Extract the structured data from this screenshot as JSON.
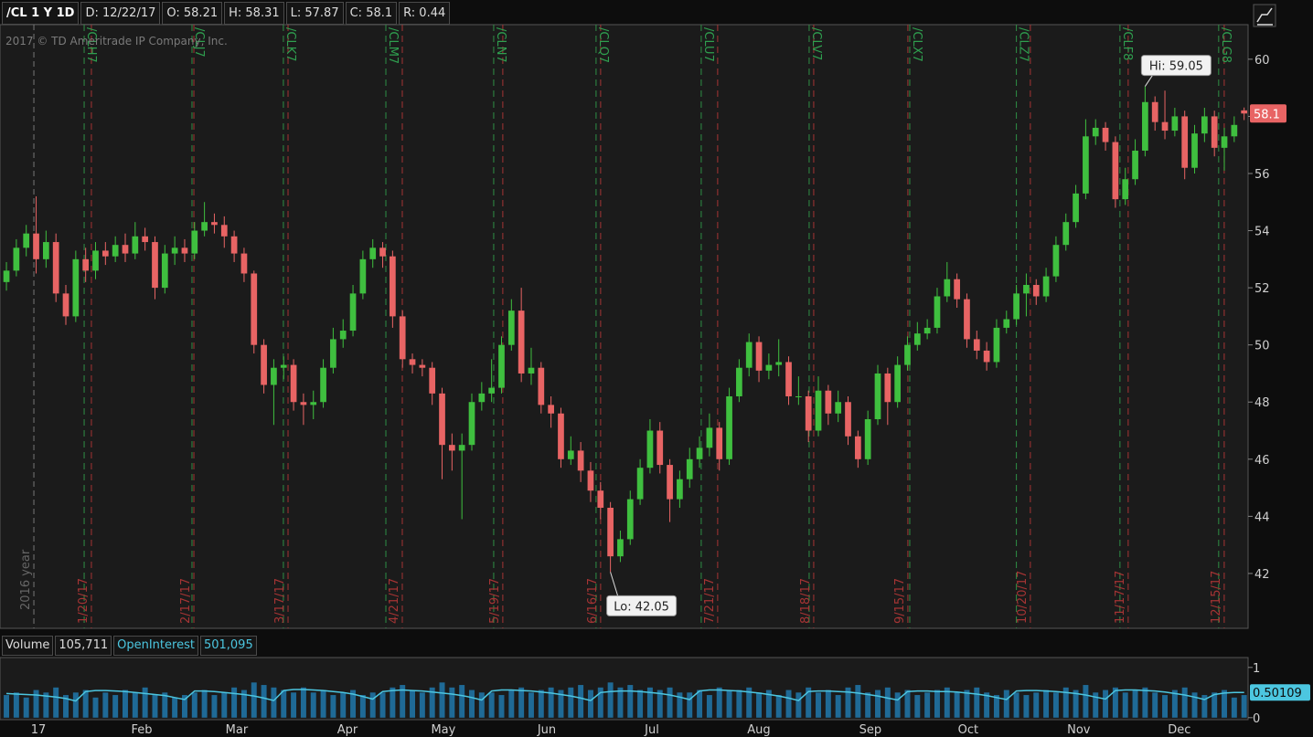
{
  "chart_data": [
    {
      "type": "candlestick",
      "title": "/CL 1 Y 1D",
      "header": [
        "D: 12/22/17",
        "O: 58.21",
        "H: 58.31",
        "L: 57.87",
        "C: 58.1",
        "R: 0.44"
      ],
      "copyright": "2017 © TD Ameritrade IP Company, Inc.",
      "up_color": "#3fbf3f",
      "down_color": "#e86464",
      "open": [
        52.2,
        52.6,
        53.4,
        53.9,
        53.0,
        53.6,
        51.8,
        51.0,
        53.0,
        52.6,
        53.3,
        53.1,
        53.5,
        53.2,
        53.8,
        53.6,
        52.0,
        53.2,
        53.4,
        53.2,
        54.0,
        54.3,
        54.2,
        53.8,
        53.2,
        52.5,
        50.0,
        48.6,
        49.2,
        49.3,
        48.0,
        47.9,
        48.0,
        49.2,
        50.2,
        50.5,
        51.8,
        53.0,
        53.4,
        53.1,
        51.0,
        49.5,
        49.3,
        49.2,
        48.3,
        46.5,
        46.3,
        46.5,
        48.0,
        48.3,
        48.5,
        50.0,
        51.2,
        49.0,
        49.2,
        47.9,
        47.6,
        46.0,
        46.3,
        45.6,
        44.9,
        44.3,
        42.6,
        43.2,
        44.6,
        45.7,
        47.0,
        45.8,
        44.6,
        45.3,
        46.0,
        46.4,
        47.1,
        46.0,
        48.2,
        49.2,
        50.1,
        49.1,
        49.3,
        49.4,
        48.2,
        48.2,
        47.0,
        48.4,
        47.6,
        48.0,
        46.8,
        46.0,
        47.4,
        49.0,
        48.0,
        49.3,
        50.0,
        50.4,
        50.6,
        51.7,
        52.3,
        51.6,
        50.2,
        49.8,
        49.4,
        50.6,
        50.9,
        51.8,
        52.1,
        51.7,
        52.4,
        53.5,
        54.3,
        55.3,
        57.3,
        57.6,
        57.1,
        55.1,
        55.8,
        56.8,
        58.5,
        57.8,
        57.5,
        58.0,
        56.2,
        57.4,
        58.0,
        56.9,
        57.3,
        58.21
      ],
      "high": [
        52.9,
        53.7,
        54.2,
        55.2,
        54.0,
        53.9,
        52.1,
        53.3,
        53.4,
        53.6,
        53.6,
        53.8,
        53.9,
        54.3,
        54.1,
        53.8,
        53.5,
        53.8,
        53.7,
        54.3,
        55.0,
        54.6,
        54.5,
        54.0,
        53.4,
        52.6,
        50.2,
        49.5,
        49.6,
        49.5,
        48.3,
        48.4,
        49.5,
        50.6,
        50.9,
        52.1,
        53.3,
        53.7,
        53.6,
        53.3,
        51.2,
        49.7,
        49.5,
        49.4,
        48.5,
        46.9,
        46.9,
        48.3,
        48.7,
        49.5,
        50.3,
        51.6,
        52.0,
        49.9,
        49.4,
        48.2,
        47.8,
        46.8,
        46.6,
        45.9,
        45.2,
        44.5,
        43.5,
        44.9,
        46.0,
        47.4,
        47.3,
        46.0,
        45.6,
        46.4,
        46.8,
        47.6,
        47.3,
        48.5,
        49.5,
        50.4,
        50.3,
        49.7,
        50.2,
        49.6,
        48.9,
        48.4,
        48.9,
        48.6,
        48.4,
        48.2,
        47.0,
        47.7,
        49.3,
        49.2,
        49.6,
        50.3,
        50.8,
        50.9,
        52.0,
        52.9,
        52.5,
        51.8,
        50.5,
        50.1,
        50.9,
        51.2,
        52.1,
        52.5,
        52.3,
        52.7,
        53.8,
        54.6,
        55.6,
        57.9,
        57.9,
        57.8,
        57.3,
        56.2,
        57.2,
        59.05,
        58.7,
        58.9,
        58.3,
        58.2,
        57.7,
        58.3,
        58.2,
        57.6,
        58.0,
        58.31
      ],
      "low": [
        51.9,
        52.4,
        53.1,
        52.5,
        52.7,
        51.5,
        50.7,
        50.8,
        52.2,
        52.3,
        52.8,
        52.9,
        52.9,
        53.0,
        53.3,
        51.6,
        51.8,
        52.8,
        52.9,
        53.0,
        53.8,
        53.9,
        53.4,
        52.9,
        52.2,
        49.7,
        48.3,
        47.2,
        48.8,
        47.7,
        47.2,
        47.4,
        47.8,
        49.0,
        49.9,
        50.3,
        51.6,
        52.7,
        52.7,
        50.6,
        49.2,
        49.0,
        48.9,
        47.9,
        45.3,
        45.6,
        43.9,
        46.3,
        47.7,
        48.0,
        48.3,
        49.8,
        48.7,
        48.6,
        47.6,
        47.1,
        45.7,
        45.8,
        45.2,
        44.5,
        43.9,
        42.05,
        42.4,
        43.0,
        44.4,
        45.5,
        45.5,
        43.8,
        44.3,
        45.0,
        45.7,
        46.1,
        45.6,
        45.8,
        48.0,
        48.9,
        48.7,
        48.8,
        48.9,
        47.9,
        47.9,
        46.6,
        46.8,
        47.2,
        47.3,
        46.5,
        45.7,
        45.8,
        47.2,
        47.2,
        47.8,
        49.1,
        49.8,
        50.2,
        50.4,
        51.5,
        51.3,
        49.9,
        49.5,
        49.1,
        49.2,
        50.4,
        50.7,
        51.0,
        51.4,
        51.5,
        52.2,
        53.3,
        54.1,
        55.1,
        57.0,
        56.8,
        54.8,
        54.9,
        55.6,
        56.6,
        57.5,
        57.2,
        57.3,
        55.8,
        56.0,
        57.1,
        56.6,
        56.1,
        57.1,
        57.87
      ],
      "close": [
        52.6,
        53.4,
        53.9,
        53.0,
        53.6,
        51.8,
        51.0,
        53.0,
        52.6,
        53.3,
        53.1,
        53.5,
        53.2,
        53.8,
        53.6,
        52.0,
        53.2,
        53.4,
        53.2,
        54.0,
        54.3,
        54.2,
        53.8,
        53.2,
        52.5,
        50.0,
        48.6,
        49.2,
        49.3,
        48.0,
        47.9,
        48.0,
        49.2,
        50.2,
        50.5,
        51.8,
        53.0,
        53.4,
        53.1,
        51.0,
        49.5,
        49.3,
        49.2,
        48.3,
        46.5,
        46.3,
        46.5,
        48.0,
        48.3,
        48.5,
        50.0,
        51.2,
        49.0,
        49.2,
        47.9,
        47.6,
        46.0,
        46.3,
        45.6,
        44.9,
        44.3,
        42.6,
        43.2,
        44.6,
        45.7,
        47.0,
        45.8,
        44.6,
        45.3,
        46.0,
        46.4,
        47.1,
        46.0,
        48.2,
        49.2,
        50.1,
        49.1,
        49.3,
        49.4,
        48.2,
        48.2,
        47.0,
        48.4,
        47.6,
        48.0,
        46.8,
        46.0,
        47.4,
        49.0,
        48.0,
        49.3,
        50.0,
        50.4,
        50.6,
        51.7,
        52.3,
        51.6,
        50.2,
        49.8,
        49.4,
        50.6,
        50.9,
        51.8,
        52.1,
        51.7,
        52.4,
        53.5,
        54.3,
        55.3,
        57.3,
        57.6,
        57.1,
        55.1,
        55.8,
        56.8,
        58.5,
        57.8,
        57.5,
        58.0,
        56.2,
        57.4,
        58.0,
        56.9,
        57.3,
        57.7,
        58.1
      ],
      "xlim": [
        -0.65,
        125.4
      ],
      "xticks": [
        {
          "value": 3.23,
          "label": "17"
        },
        {
          "value": 13.66,
          "label": "Feb"
        },
        {
          "value": 23.26,
          "label": "Mar"
        },
        {
          "value": 34.44,
          "label": "Apr"
        },
        {
          "value": 44.13,
          "label": "May"
        },
        {
          "value": 54.57,
          "label": "Jun"
        },
        {
          "value": 65.19,
          "label": "Jul"
        },
        {
          "value": 75.99,
          "label": "Aug"
        },
        {
          "value": 87.25,
          "label": "Sep"
        },
        {
          "value": 97.13,
          "label": "Oct"
        },
        {
          "value": 108.3,
          "label": "Nov"
        },
        {
          "value": 118.46,
          "label": "Dec"
        }
      ],
      "ylim": [
        40.08,
        61.21
      ],
      "yticks": [
        42,
        44,
        46,
        48,
        50,
        52,
        54,
        56,
        58,
        60
      ],
      "hi": {
        "text": "Hi: 59.05",
        "x": 115
      },
      "lo": {
        "text": "Lo: 42.05",
        "x": 61
      },
      "year": {
        "text": "2016 year",
        "x": 2.77
      },
      "expirations": [
        {
          "contract": "/CLH7",
          "contract_x": 7.85,
          "date": "1/20/17",
          "x": 8.58
        },
        {
          "contract": "/CLJ7",
          "contract_x": 18.74,
          "date": "2/17/17",
          "x": 18.93
        },
        {
          "contract": "/CLK7",
          "contract_x": 27.97,
          "date": "3/17/17",
          "x": 28.44
        },
        {
          "contract": "/CLM7",
          "contract_x": 38.32,
          "date": "4/21/17",
          "x": 39.98
        },
        {
          "contract": "/CLN7",
          "contract_x": 49.21,
          "date": "5/19/17",
          "x": 50.13
        },
        {
          "contract": "/CLQ7",
          "contract_x": 59.55,
          "date": "6/16/17",
          "x": 60.01
        },
        {
          "contract": "/CLU7",
          "contract_x": 70.17,
          "date": "7/21/17",
          "x": 71.83
        },
        {
          "contract": "/CLV7",
          "contract_x": 81.07,
          "date": "8/18/17",
          "x": 81.53
        },
        {
          "contract": "/CLX7",
          "contract_x": 91.23,
          "date": "9/15/17",
          "x": 91.04
        },
        {
          "contract": "/CLZ7",
          "contract_x": 102.0,
          "date": "10/20/17",
          "x": 103.41
        },
        {
          "contract": "/CLF8",
          "contract_x": 112.46,
          "date": "11/17/17",
          "x": 113.29
        },
        {
          "contract": "/CLG8",
          "contract_x": 122.43,
          "date": "12/15/17",
          "x": 122.99
        }
      ]
    },
    {
      "type": "bar",
      "series": [
        {
          "name": "Volume",
          "value_text": "105,711",
          "color": "#1f6a96",
          "values": [
            0.45,
            0.5,
            0.4,
            0.55,
            0.5,
            0.6,
            0.45,
            0.5,
            0.55,
            0.4,
            0.5,
            0.45,
            0.55,
            0.5,
            0.6,
            0.45,
            0.5,
            0.4,
            0.45,
            0.5,
            0.55,
            0.45,
            0.5,
            0.6,
            0.55,
            0.7,
            0.65,
            0.6,
            0.55,
            0.5,
            0.6,
            0.5,
            0.55,
            0.45,
            0.5,
            0.55,
            0.45,
            0.5,
            0.5,
            0.6,
            0.65,
            0.55,
            0.5,
            0.6,
            0.7,
            0.6,
            0.65,
            0.55,
            0.5,
            0.5,
            0.45,
            0.55,
            0.6,
            0.5,
            0.55,
            0.6,
            0.55,
            0.6,
            0.65,
            0.55,
            0.6,
            0.7,
            0.6,
            0.65,
            0.55,
            0.6,
            0.55,
            0.6,
            0.5,
            0.5,
            0.55,
            0.45,
            0.6,
            0.55,
            0.55,
            0.6,
            0.5,
            0.55,
            0.45,
            0.55,
            0.5,
            0.6,
            0.5,
            0.55,
            0.45,
            0.6,
            0.65,
            0.5,
            0.55,
            0.6,
            0.5,
            0.55,
            0.45,
            0.5,
            0.55,
            0.6,
            0.5,
            0.55,
            0.6,
            0.5,
            0.45,
            0.55,
            0.5,
            0.45,
            0.5,
            0.55,
            0.5,
            0.6,
            0.55,
            0.65,
            0.5,
            0.55,
            0.6,
            0.5,
            0.55,
            0.6,
            0.5,
            0.45,
            0.55,
            0.6,
            0.5,
            0.45,
            0.5,
            0.55,
            0.4,
            0.45
          ]
        },
        {
          "name": "OpenInterest",
          "value_text": "501,095",
          "color": "#4cc6e0",
          "type": "line",
          "values": [
            0.48,
            0.47,
            0.46,
            0.45,
            0.43,
            0.41,
            0.38,
            0.33,
            0.52,
            0.54,
            0.54,
            0.53,
            0.52,
            0.5,
            0.48,
            0.46,
            0.44,
            0.4,
            0.36,
            0.53,
            0.53,
            0.52,
            0.5,
            0.48,
            0.46,
            0.43,
            0.39,
            0.34,
            0.54,
            0.56,
            0.56,
            0.55,
            0.54,
            0.52,
            0.5,
            0.47,
            0.42,
            0.37,
            0.52,
            0.54,
            0.55,
            0.54,
            0.53,
            0.51,
            0.49,
            0.47,
            0.44,
            0.4,
            0.35,
            0.53,
            0.55,
            0.55,
            0.54,
            0.53,
            0.51,
            0.49,
            0.46,
            0.43,
            0.39,
            0.34,
            0.5,
            0.52,
            0.53,
            0.53,
            0.52,
            0.5,
            0.48,
            0.45,
            0.41,
            0.36,
            0.53,
            0.55,
            0.55,
            0.54,
            0.53,
            0.51,
            0.49,
            0.46,
            0.43,
            0.39,
            0.34,
            0.52,
            0.53,
            0.53,
            0.52,
            0.51,
            0.49,
            0.46,
            0.43,
            0.39,
            0.35,
            0.52,
            0.53,
            0.53,
            0.52,
            0.52,
            0.51,
            0.49,
            0.47,
            0.44,
            0.4,
            0.36,
            0.53,
            0.54,
            0.54,
            0.53,
            0.52,
            0.5,
            0.48,
            0.45,
            0.41,
            0.37,
            0.54,
            0.55,
            0.55,
            0.54,
            0.53,
            0.51,
            0.48,
            0.45,
            0.41,
            0.36,
            0.46,
            0.49,
            0.5,
            0.50109
          ]
        }
      ],
      "ylim": [
        -0.04,
        1.16
      ],
      "yticks": [
        0,
        1
      ]
    }
  ]
}
